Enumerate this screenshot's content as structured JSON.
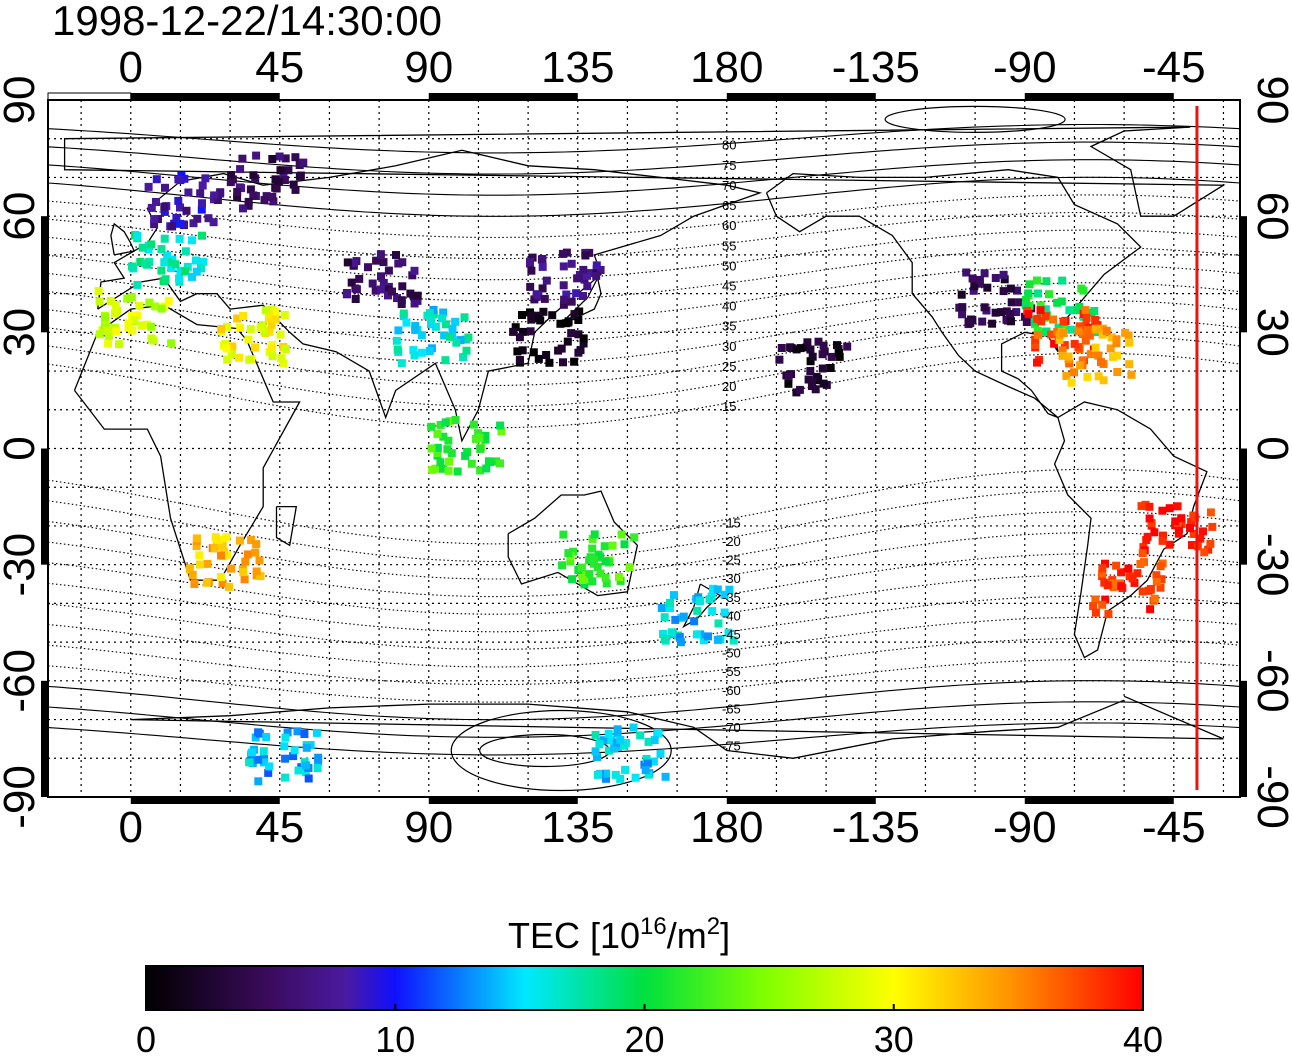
{
  "title": "1998-12-22/14:30:00",
  "map": {
    "lon_ticks": [
      "0",
      "45",
      "90",
      "135",
      "180",
      "-135",
      "-90",
      "-45"
    ],
    "lat_ticks": [
      "90",
      "60",
      "30",
      "0",
      "-30",
      "-60",
      "-90"
    ],
    "lon_range": [
      -25,
      335
    ],
    "lat_range": [
      -90,
      90
    ],
    "grid": true,
    "terminator_longitude": -38,
    "terminator_color": "#ee1111",
    "contour_labels": [
      "80",
      "75",
      "70",
      "65",
      "60",
      "55",
      "50",
      "45",
      "40",
      "35",
      "30",
      "25",
      "20",
      "15",
      "-15",
      "-20",
      "-25",
      "-30",
      "-35",
      "-40",
      "-45",
      "-50",
      "-55",
      "-60",
      "-65",
      "-70",
      "-75"
    ]
  },
  "colorbar": {
    "label_main": "TEC  [10",
    "label_sup1": "16",
    "label_mid": "/m",
    "label_sup2": "2",
    "label_end": "]",
    "ticks": [
      "0",
      "10",
      "20",
      "30",
      "40"
    ],
    "range": [
      0,
      40
    ],
    "colors": [
      "#000000",
      "#3a0a5a",
      "#4a1aa0",
      "#1010ff",
      "#00e8ff",
      "#00e040",
      "#ffff00",
      "#ff9000",
      "#ff0000"
    ]
  },
  "chart_data": {
    "type": "heatmap",
    "title": "1998-12-22/14:30:00",
    "quantity": "TEC",
    "units": "10^16/m^2",
    "value_range": [
      0,
      40
    ],
    "regions": [
      {
        "lon": 10,
        "lat": 50,
        "tec": 17
      },
      {
        "lon": 15,
        "lat": 65,
        "tec": 8
      },
      {
        "lon": 40,
        "lat": 70,
        "tec": 5
      },
      {
        "lon": 0,
        "lat": 35,
        "tec": 28
      },
      {
        "lon": 35,
        "lat": 30,
        "tec": 30
      },
      {
        "lon": 75,
        "lat": 45,
        "tec": 5
      },
      {
        "lon": 90,
        "lat": 30,
        "tec": 16
      },
      {
        "lon": 125,
        "lat": 30,
        "tec": 1
      },
      {
        "lon": 130,
        "lat": 45,
        "tec": 6
      },
      {
        "lon": 100,
        "lat": 2,
        "tec": 22
      },
      {
        "lon": 140,
        "lat": -28,
        "tec": 22
      },
      {
        "lon": 170,
        "lat": -42,
        "tec": 15
      },
      {
        "lon": 27,
        "lat": -28,
        "tec": 33
      },
      {
        "lon": -100,
        "lat": 40,
        "tec": 4
      },
      {
        "lon": -80,
        "lat": 38,
        "tec": 20
      },
      {
        "lon": -80,
        "lat": 30,
        "tec": 38
      },
      {
        "lon": -70,
        "lat": 25,
        "tec": 34
      },
      {
        "lon": -45,
        "lat": -20,
        "tec": 39
      },
      {
        "lon": -60,
        "lat": -35,
        "tec": 38
      },
      {
        "lon": 45,
        "lat": -78,
        "tec": 14
      },
      {
        "lon": 150,
        "lat": -78,
        "tec": 15
      },
      {
        "lon": -155,
        "lat": 22,
        "tec": 2
      }
    ]
  }
}
